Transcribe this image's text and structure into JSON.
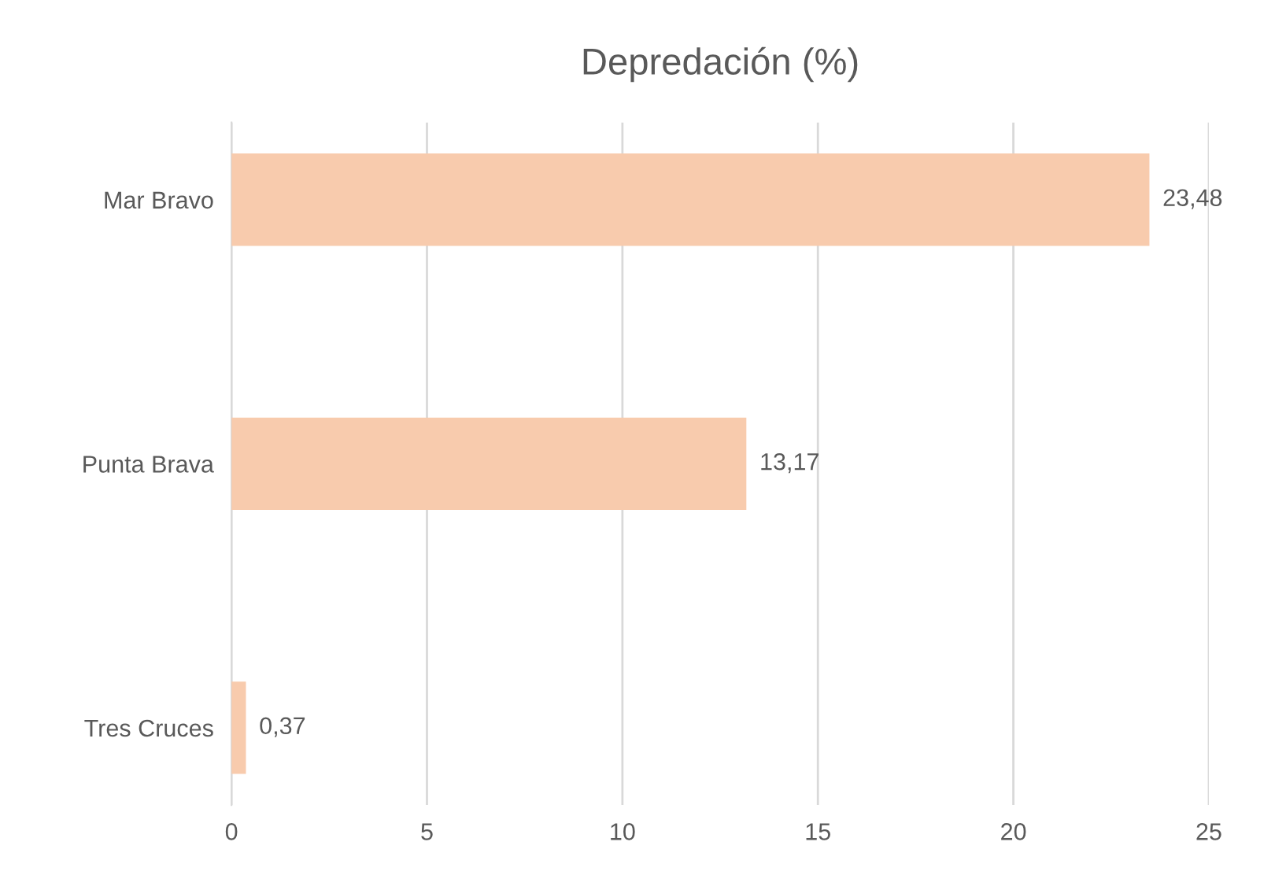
{
  "chart_data": {
    "type": "bar",
    "orientation": "horizontal",
    "title": "Depredación (%)",
    "categories": [
      "Mar Bravo",
      "Punta Brava",
      "Tres Cruces"
    ],
    "values": [
      23.48,
      13.17,
      0.37
    ],
    "value_labels": [
      "23,48",
      "13,17",
      "0,37"
    ],
    "color": "#f8cbad",
    "xlim": [
      0,
      25
    ],
    "xticks": [
      0,
      5,
      10,
      15,
      20,
      25
    ],
    "grid": "x"
  }
}
